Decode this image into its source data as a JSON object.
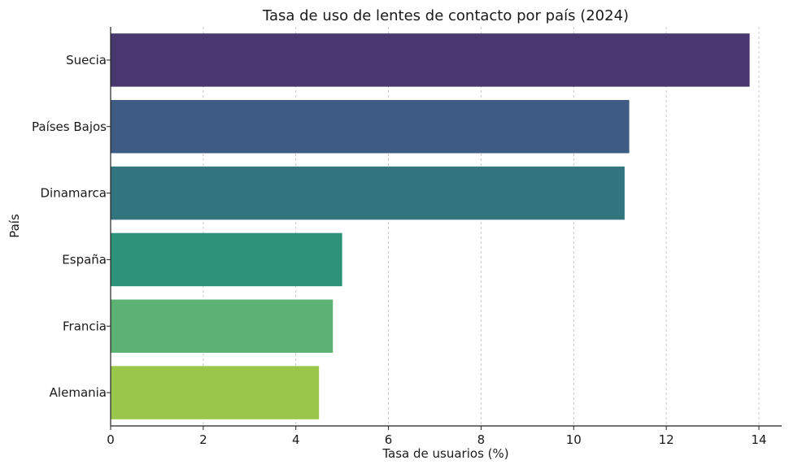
{
  "chart_data": {
    "type": "bar",
    "orientation": "horizontal",
    "title": "Tasa de uso de lentes de contacto por país (2024)",
    "xlabel": "Tasa de usuarios (%)",
    "ylabel": "País",
    "categories": [
      "Suecia",
      "Países Bajos",
      "Dinamarca",
      "España",
      "Francia",
      "Alemania"
    ],
    "values": [
      13.8,
      11.2,
      11.1,
      5.0,
      4.8,
      4.5
    ],
    "colors": [
      "#48386f",
      "#3e5c83",
      "#32757f",
      "#2e917a",
      "#5cb273",
      "#9ac64c"
    ],
    "xlim": [
      0,
      14.5
    ],
    "xticks": [
      0,
      2,
      4,
      6,
      8,
      10,
      12,
      14
    ],
    "xtick_labels": [
      "0",
      "2",
      "4",
      "6",
      "8",
      "10",
      "12",
      "14"
    ],
    "grid": "vertical dashed",
    "legend": "none"
  }
}
